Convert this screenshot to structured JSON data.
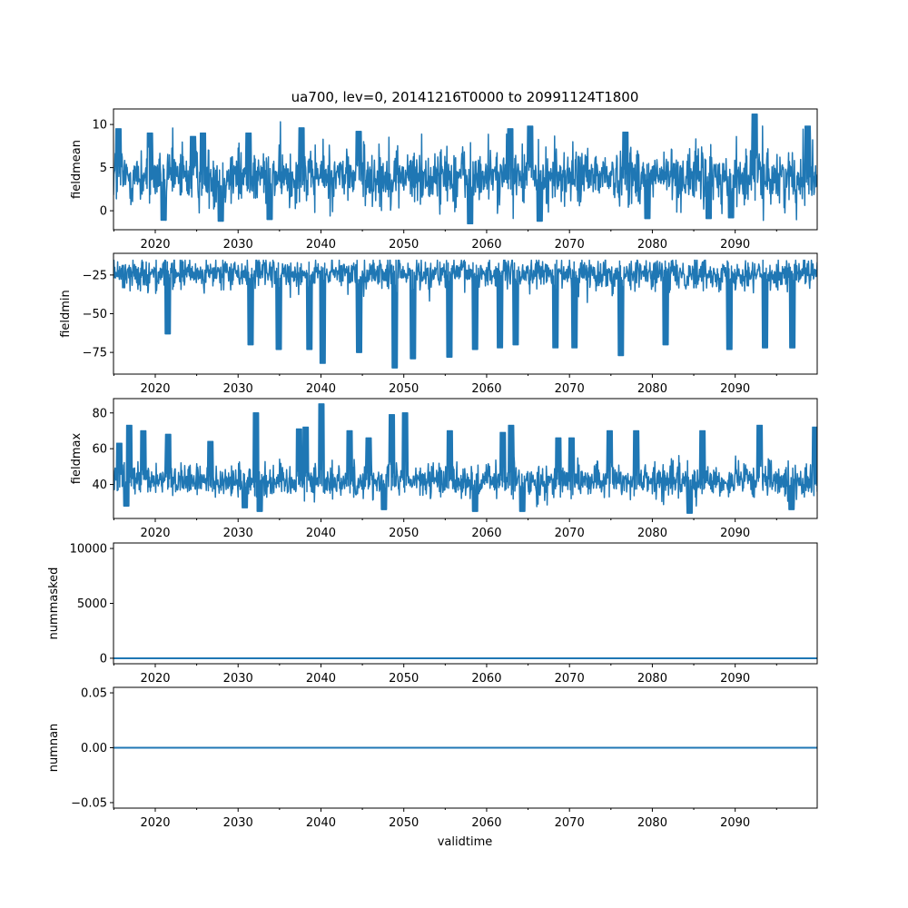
{
  "chart_data": {
    "type": "line",
    "title": "ua700, lev=0, 20141216T0000 to 20991124T1800",
    "xlabel": "validtime",
    "xlim": [
      2014.96,
      2099.9
    ],
    "x_ticks": [
      "2020",
      "2030",
      "2040",
      "2050",
      "2060",
      "2070",
      "2080",
      "2090"
    ],
    "line_color": "#1f77b4",
    "panels": [
      {
        "ylabel": "fieldmean",
        "ylim": [
          -2.2,
          11.8
        ],
        "y_ticks": [
          {
            "value": 0,
            "label": "0"
          },
          {
            "value": 5,
            "label": "5"
          },
          {
            "value": 10,
            "label": "10"
          }
        ],
        "baseline": 4.0,
        "spread": 2.3,
        "min": -1.5,
        "max": 11.2,
        "peaks": [
          [
            2015.6,
            9.5
          ],
          [
            2019.4,
            9.0
          ],
          [
            2024.6,
            8.6
          ],
          [
            2025.8,
            9.0
          ],
          [
            2031.3,
            9.0
          ],
          [
            2037.7,
            9.6
          ],
          [
            2044.6,
            9.2
          ],
          [
            2062.9,
            9.5
          ],
          [
            2065.3,
            9.8
          ],
          [
            2076.8,
            9.1
          ],
          [
            2092.4,
            11.2
          ],
          [
            2098.8,
            9.8
          ]
        ],
        "troughs": [
          [
            2021.0,
            -1.1
          ],
          [
            2027.9,
            -1.2
          ],
          [
            2033.8,
            -1.0
          ],
          [
            2058.0,
            -1.5
          ],
          [
            2066.4,
            -1.2
          ],
          [
            2079.4,
            -0.9
          ],
          [
            2086.8,
            -0.9
          ],
          [
            2089.5,
            -0.8
          ]
        ]
      },
      {
        "ylabel": "fieldmin",
        "ylim": [
          -89,
          -11
        ],
        "y_ticks": [
          {
            "value": -25,
            "label": "−25"
          },
          {
            "value": -50,
            "label": "−50"
          },
          {
            "value": -75,
            "label": "−75"
          }
        ],
        "baseline": -24.0,
        "spread": 7.0,
        "min": -85.0,
        "max": -15.5,
        "peaks": [],
        "troughs": [
          [
            2021.5,
            -63
          ],
          [
            2031.5,
            -70
          ],
          [
            2034.9,
            -73
          ],
          [
            2038.6,
            -73
          ],
          [
            2040.2,
            -82
          ],
          [
            2044.6,
            -75
          ],
          [
            2048.9,
            -85
          ],
          [
            2051.1,
            -79
          ],
          [
            2055.5,
            -78
          ],
          [
            2058.6,
            -73
          ],
          [
            2061.6,
            -72
          ],
          [
            2063.5,
            -70
          ],
          [
            2068.3,
            -72
          ],
          [
            2070.6,
            -72
          ],
          [
            2076.2,
            -77
          ],
          [
            2081.6,
            -70
          ],
          [
            2089.3,
            -73
          ],
          [
            2093.6,
            -72
          ],
          [
            2096.9,
            -72
          ]
        ]
      },
      {
        "ylabel": "fieldmax",
        "ylim": [
          21,
          88
        ],
        "y_ticks": [
          {
            "value": 40,
            "label": "40"
          },
          {
            "value": 60,
            "label": "60"
          },
          {
            "value": 80,
            "label": "80"
          }
        ],
        "baseline": 42.0,
        "spread": 6.5,
        "min": 24.0,
        "max": 85.0,
        "peaks": [
          [
            2015.7,
            63
          ],
          [
            2016.9,
            73
          ],
          [
            2018.6,
            70
          ],
          [
            2021.6,
            68
          ],
          [
            2026.7,
            64
          ],
          [
            2032.2,
            80
          ],
          [
            2037.4,
            71
          ],
          [
            2038.2,
            72
          ],
          [
            2040.1,
            85
          ],
          [
            2043.5,
            70
          ],
          [
            2045.8,
            66
          ],
          [
            2048.6,
            79
          ],
          [
            2050.2,
            80
          ],
          [
            2055.6,
            70
          ],
          [
            2062.0,
            69
          ],
          [
            2063.0,
            73
          ],
          [
            2068.7,
            66
          ],
          [
            2070.3,
            66
          ],
          [
            2074.9,
            70
          ],
          [
            2078.1,
            70
          ],
          [
            2086.1,
            70
          ],
          [
            2093.0,
            73
          ],
          [
            2099.7,
            72
          ]
        ],
        "troughs": [
          [
            2016.5,
            28
          ],
          [
            2030.8,
            27
          ],
          [
            2032.6,
            25
          ],
          [
            2047.6,
            26
          ],
          [
            2058.6,
            25
          ],
          [
            2064.3,
            25
          ],
          [
            2084.5,
            24
          ],
          [
            2096.8,
            26
          ]
        ]
      },
      {
        "ylabel": "nummasked",
        "ylim": [
          -500,
          10500
        ],
        "y_ticks": [
          {
            "value": 0,
            "label": "0"
          },
          {
            "value": 5000,
            "label": "5000"
          },
          {
            "value": 10000,
            "label": "10000"
          }
        ],
        "constant": 0
      },
      {
        "ylabel": "numnan",
        "ylim": [
          -0.055,
          0.055
        ],
        "y_ticks": [
          {
            "value": -0.05,
            "label": "−0.05"
          },
          {
            "value": 0.0,
            "label": "0.00"
          },
          {
            "value": 0.05,
            "label": "0.05"
          }
        ],
        "constant": 0
      }
    ]
  }
}
